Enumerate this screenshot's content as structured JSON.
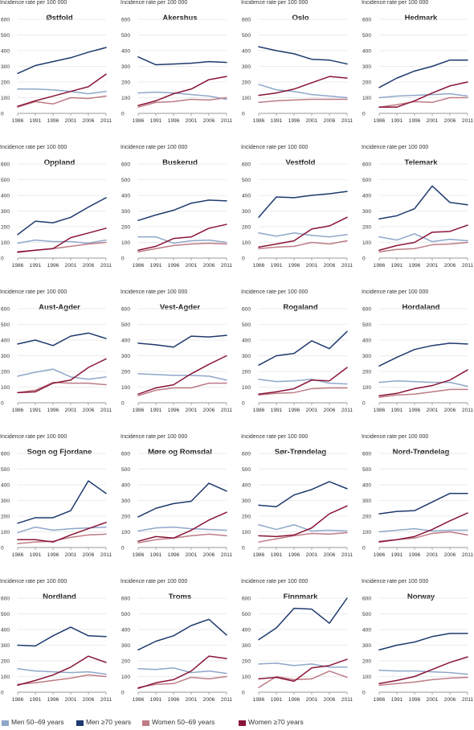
{
  "chart_data": {
    "type": "line",
    "ylabel": "Incidence rate per 100 000",
    "ylim": [
      0,
      600
    ],
    "yticks": [
      "0",
      "100",
      "200",
      "300",
      "400",
      "500",
      "600"
    ],
    "x": [
      "1986",
      "1991",
      "1996",
      "2001",
      "2006",
      "2011"
    ],
    "legend": [
      {
        "name": "Men 50–69 years",
        "color": "#8fa7c9"
      },
      {
        "name": "Men ≥70 years",
        "color": "#1e3a6e"
      },
      {
        "name": "Women 50–69 years",
        "color": "#bd7b86"
      },
      {
        "name": "Women ≥70 years",
        "color": "#8a1538"
      }
    ],
    "legend_placement": "bottom",
    "panels": [
      {
        "title": "Østfold",
        "series": [
          {
            "name": "Men 50–69 years",
            "values": [
              155,
              155,
              150,
              140,
              125,
              140
            ]
          },
          {
            "name": "Men ≥70 years",
            "values": [
              255,
              305,
              330,
              355,
              390,
              420
            ]
          },
          {
            "name": "Women 50–69 years",
            "values": [
              40,
              75,
              60,
              100,
              95,
              110
            ]
          },
          {
            "name": "Women ≥70 years",
            "values": [
              45,
              80,
              110,
              140,
              170,
              250
            ]
          }
        ]
      },
      {
        "title": "Akershus",
        "series": [
          {
            "name": "Men 50–69 years",
            "values": [
              130,
              135,
              130,
              120,
              110,
              90
            ]
          },
          {
            "name": "Men ≥70 years",
            "values": [
              360,
              310,
              315,
              320,
              330,
              325
            ]
          },
          {
            "name": "Women 50–69 years",
            "values": [
              40,
              70,
              75,
              90,
              85,
              100
            ]
          },
          {
            "name": "Women ≥70 years",
            "values": [
              50,
              80,
              125,
              155,
              215,
              235
            ]
          }
        ]
      },
      {
        "title": "Oslo",
        "series": [
          {
            "name": "Men 50–69 years",
            "values": [
              185,
              150,
              140,
              120,
              110,
              100
            ]
          },
          {
            "name": "Men ≥70 years",
            "values": [
              425,
              400,
              380,
              345,
              340,
              315
            ]
          },
          {
            "name": "Women 50–69 years",
            "values": [
              70,
              80,
              85,
              90,
              90,
              90
            ]
          },
          {
            "name": "Women ≥70 years",
            "values": [
              115,
              130,
              155,
              195,
              235,
              225
            ]
          }
        ]
      },
      {
        "title": "Hedmark",
        "series": [
          {
            "name": "Men 50–69 years",
            "values": [
              100,
              110,
              115,
              120,
              125,
              110
            ]
          },
          {
            "name": "Men ≥70 years",
            "values": [
              165,
              225,
              270,
              300,
              340,
              340
            ]
          },
          {
            "name": "Women 50–69 years",
            "values": [
              40,
              55,
              75,
              70,
              100,
              100
            ]
          },
          {
            "name": "Women ≥70 years",
            "values": [
              40,
              40,
              80,
              130,
              175,
              200
            ]
          }
        ]
      },
      {
        "title": "Oppland",
        "series": [
          {
            "name": "Men 50–69 years",
            "values": [
              95,
              115,
              105,
              105,
              95,
              115
            ]
          },
          {
            "name": "Men ≥70 years",
            "values": [
              150,
              235,
              225,
              260,
              325,
              385
            ]
          },
          {
            "name": "Women 50–69 years",
            "values": [
              35,
              50,
              60,
              75,
              90,
              100
            ]
          },
          {
            "name": "Women ≥70 years",
            "values": [
              40,
              50,
              60,
              130,
              160,
              190
            ]
          }
        ]
      },
      {
        "title": "Buskerud",
        "series": [
          {
            "name": "Men 50–69 years",
            "values": [
              135,
              135,
              95,
              110,
              115,
              100
            ]
          },
          {
            "name": "Men ≥70 years",
            "values": [
              240,
              275,
              305,
              350,
              370,
              365
            ]
          },
          {
            "name": "Women 50–69 years",
            "values": [
              40,
              60,
              80,
              90,
              95,
              90
            ]
          },
          {
            "name": "Women ≥70 years",
            "values": [
              50,
              75,
              125,
              135,
              190,
              215
            ]
          }
        ]
      },
      {
        "title": "Vestfold",
        "series": [
          {
            "name": "Men 50–69 years",
            "values": [
              160,
              140,
              160,
              145,
              135,
              150
            ]
          },
          {
            "name": "Men ≥70 years",
            "values": [
              260,
              390,
              385,
              400,
              410,
              425
            ]
          },
          {
            "name": "Women 50–69 years",
            "values": [
              60,
              70,
              75,
              100,
              90,
              110
            ]
          },
          {
            "name": "Women ≥70 years",
            "values": [
              70,
              90,
              110,
              185,
              205,
              260
            ]
          }
        ]
      },
      {
        "title": "Telemark",
        "series": [
          {
            "name": "Men 50–69 years",
            "values": [
              135,
              115,
              155,
              105,
              120,
              110
            ]
          },
          {
            "name": "Men ≥70 years",
            "values": [
              250,
              270,
              315,
              460,
              355,
              340
            ]
          },
          {
            "name": "Women 50–69 years",
            "values": [
              40,
              55,
              60,
              85,
              90,
              100
            ]
          },
          {
            "name": "Women ≥70 years",
            "values": [
              50,
              80,
              100,
              165,
              170,
              210
            ]
          }
        ]
      },
      {
        "title": "Aust-Agder",
        "series": [
          {
            "name": "Men 50–69 years",
            "values": [
              170,
              195,
              215,
              165,
              150,
              165
            ]
          },
          {
            "name": "Men ≥70 years",
            "values": [
              375,
              400,
              365,
              425,
              445,
              410
            ]
          },
          {
            "name": "Women 50–69 years",
            "values": [
              65,
              80,
              130,
              125,
              125,
              115
            ]
          },
          {
            "name": "Women ≥70 years",
            "values": [
              65,
              70,
              125,
              145,
              225,
              280
            ]
          }
        ]
      },
      {
        "title": "Vest-Agder",
        "series": [
          {
            "name": "Men 50–69 years",
            "values": [
              185,
              180,
              175,
              175,
              170,
              145
            ]
          },
          {
            "name": "Men ≥70 years",
            "values": [
              380,
              370,
              355,
              425,
              420,
              430
            ]
          },
          {
            "name": "Women 50–69 years",
            "values": [
              45,
              80,
              95,
              95,
              125,
              125
            ]
          },
          {
            "name": "Women ≥70 years",
            "values": [
              55,
              95,
              115,
              185,
              245,
              300
            ]
          }
        ]
      },
      {
        "title": "Rogaland",
        "series": [
          {
            "name": "Men 50–69 years",
            "values": [
              150,
              135,
              140,
              150,
              125,
              120
            ]
          },
          {
            "name": "Men ≥70 years",
            "values": [
              240,
              300,
              315,
              395,
              345,
              455
            ]
          },
          {
            "name": "Women 50–69 years",
            "values": [
              50,
              60,
              65,
              90,
              95,
              95
            ]
          },
          {
            "name": "Women ≥70 years",
            "values": [
              55,
              70,
              90,
              145,
              140,
              225
            ]
          }
        ]
      },
      {
        "title": "Hordaland",
        "series": [
          {
            "name": "Men 50–69 years",
            "values": [
              130,
              140,
              135,
              130,
              130,
              105
            ]
          },
          {
            "name": "Men ≥70 years",
            "values": [
              235,
              290,
              340,
              365,
              380,
              375
            ]
          },
          {
            "name": "Women 50–69 years",
            "values": [
              35,
              50,
              55,
              70,
              85,
              85
            ]
          },
          {
            "name": "Women ≥70 years",
            "values": [
              45,
              60,
              90,
              110,
              145,
              210
            ]
          }
        ]
      },
      {
        "title": "Sogn og Fjordane",
        "series": [
          {
            "name": "Men 50–69 years",
            "values": [
              95,
              130,
              110,
              120,
              125,
              130
            ]
          },
          {
            "name": "Men ≥70 years",
            "values": [
              155,
              190,
              190,
              235,
              425,
              345
            ]
          },
          {
            "name": "Women 50–69 years",
            "values": [
              25,
              35,
              40,
              65,
              80,
              85
            ]
          },
          {
            "name": "Women ≥70 years",
            "values": [
              50,
              50,
              35,
              80,
              120,
              160
            ]
          }
        ]
      },
      {
        "title": "Møre og Romsdal",
        "series": [
          {
            "name": "Men 50–69 years",
            "values": [
              105,
              125,
              130,
              120,
              115,
              110
            ]
          },
          {
            "name": "Men ≥70 years",
            "values": [
              195,
              250,
              280,
              295,
              410,
              360
            ]
          },
          {
            "name": "Women 50–69 years",
            "values": [
              30,
              50,
              60,
              75,
              85,
              75
            ]
          },
          {
            "name": "Women ≥70 years",
            "values": [
              40,
              70,
              60,
              110,
              175,
              225
            ]
          }
        ]
      },
      {
        "title": "Sør-Trøndelag",
        "series": [
          {
            "name": "Men 50–69 years",
            "values": [
              145,
              115,
              145,
              105,
              110,
              105
            ]
          },
          {
            "name": "Men ≥70 years",
            "values": [
              270,
              260,
              335,
              370,
              420,
              375
            ]
          },
          {
            "name": "Women 50–69 years",
            "values": [
              35,
              55,
              75,
              90,
              85,
              95
            ]
          },
          {
            "name": "Women ≥70 years",
            "values": [
              75,
              70,
              80,
              125,
              215,
              265
            ]
          }
        ]
      },
      {
        "title": "Nord-Trøndelag",
        "series": [
          {
            "name": "Men 50–69 years",
            "values": [
              100,
              110,
              120,
              105,
              110,
              110
            ]
          },
          {
            "name": "Men ≥70 years",
            "values": [
              215,
              230,
              235,
              290,
              345,
              345
            ]
          },
          {
            "name": "Women 50–69 years",
            "values": [
              40,
              50,
              60,
              90,
              100,
              80
            ]
          },
          {
            "name": "Women ≥70 years",
            "values": [
              35,
              50,
              70,
              115,
              170,
              220
            ]
          }
        ]
      },
      {
        "title": "Nordland",
        "series": [
          {
            "name": "Men 50–69 years",
            "values": [
              150,
              135,
              130,
              125,
              130,
              115
            ]
          },
          {
            "name": "Men ≥70 years",
            "values": [
              300,
              295,
              360,
              415,
              360,
              355
            ]
          },
          {
            "name": "Women 50–69 years",
            "values": [
              50,
              60,
              75,
              90,
              110,
              100
            ]
          },
          {
            "name": "Women ≥70 years",
            "values": [
              45,
              75,
              110,
              160,
              230,
              190
            ]
          }
        ]
      },
      {
        "title": "Troms",
        "series": [
          {
            "name": "Men 50–69 years",
            "values": [
              150,
              145,
              155,
              125,
              135,
              120
            ]
          },
          {
            "name": "Men ≥70 years",
            "values": [
              270,
              325,
              360,
              425,
              465,
              365
            ]
          },
          {
            "name": "Women 50–69 years",
            "values": [
              30,
              50,
              55,
              95,
              85,
              100
            ]
          },
          {
            "name": "Women ≥70 years",
            "values": [
              25,
              60,
              80,
              135,
              230,
              215
            ]
          }
        ]
      },
      {
        "title": "Finnmark",
        "series": [
          {
            "name": "Men 50–69 years",
            "values": [
              180,
              185,
              170,
              180,
              160,
              160
            ]
          },
          {
            "name": "Men ≥70 years",
            "values": [
              335,
              410,
              535,
              530,
              440,
              600
            ]
          },
          {
            "name": "Women 50–69 years",
            "values": [
              30,
              100,
              80,
              85,
              135,
              95
            ]
          },
          {
            "name": "Women ≥70 years",
            "values": [
              85,
              95,
              70,
              155,
              170,
              210
            ]
          }
        ]
      },
      {
        "title": "Norway",
        "series": [
          {
            "name": "Men 50–69 years",
            "values": [
              140,
              135,
              135,
              130,
              125,
              115
            ]
          },
          {
            "name": "Men ≥70 years",
            "values": [
              270,
              300,
              320,
              355,
              375,
              375
            ]
          },
          {
            "name": "Women 50–69 years",
            "values": [
              45,
              55,
              65,
              80,
              90,
              95
            ]
          },
          {
            "name": "Women ≥70 years",
            "values": [
              55,
              75,
              100,
              145,
              190,
              225
            ]
          }
        ]
      }
    ]
  }
}
